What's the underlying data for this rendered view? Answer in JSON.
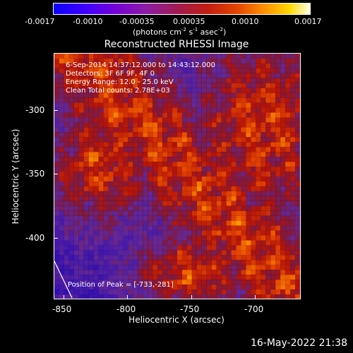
{
  "colorbar": {
    "ticks": [
      "-0.0017",
      "-0.0010",
      "-0.00035",
      "0.00035",
      "0.0010",
      "0.0017"
    ],
    "unit_prefix": "(photons cm",
    "unit_sup1": "-2",
    "unit_mid1": " s",
    "unit_sup2": "-1",
    "unit_mid2": " asec",
    "unit_sup3": "-2",
    "unit_suffix": ")"
  },
  "title": "Reconstructed RHESSI Image",
  "annotations": {
    "time": "6-Sep-2014 14:37:12.000 to 14:43:12.000",
    "detectors": "Detectors: 3F 6F 9F, 4F 0",
    "energy": "Energy Range: 12.0 - 25.0 keV",
    "method": "Clean     Total counts: 2.78E+03",
    "peak": "Position of Peak = [-733,-281]"
  },
  "x_axis": {
    "label": "Heliocentric X (arcsec)",
    "ticks": [
      "-850",
      "-800",
      "-750",
      "-700"
    ]
  },
  "y_axis": {
    "label": "Heliocentric Y (arcsec)",
    "ticks": [
      "-300",
      "-350",
      "-400"
    ]
  },
  "timestamp": "16-May-2022 21:38",
  "colors": {
    "background": "#000000",
    "text": "#ffffff"
  }
}
